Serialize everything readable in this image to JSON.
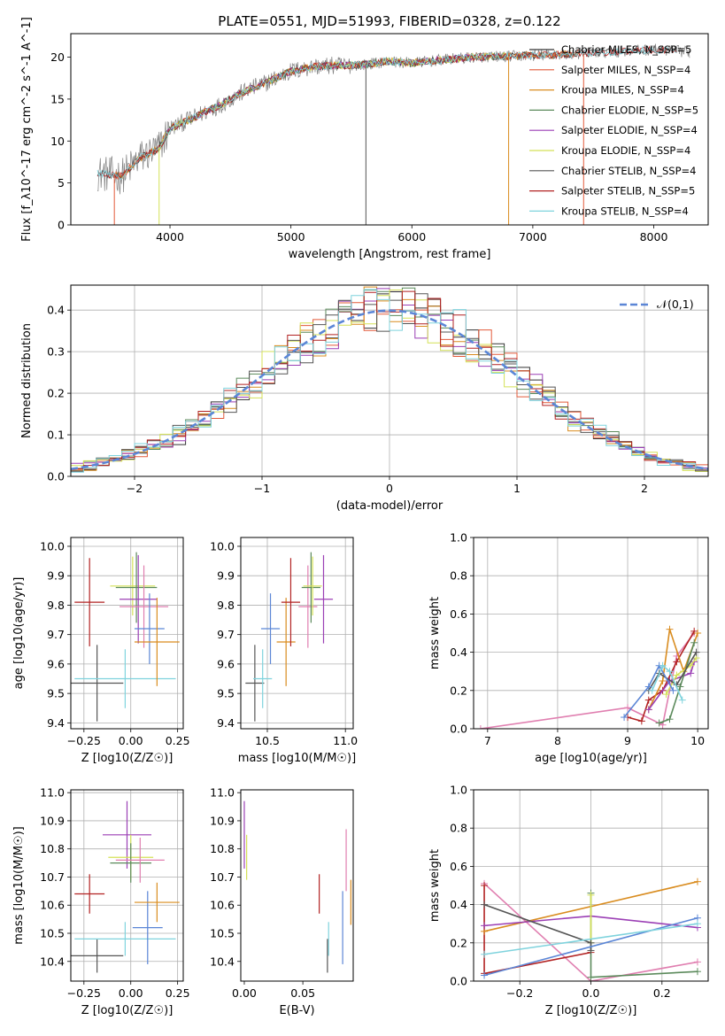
{
  "figure_title": "PLATE=0551, MJD=51993, FIBERID=0328, z=0.122",
  "colors": {
    "Chabrier MILES": "#333333",
    "Salpeter MILES": "#e35a3a",
    "Kroupa MILES": "#d98c1f",
    "Chabrier ELODIE": "#5b8a5b",
    "Salpeter ELODIE": "#9b3fb5",
    "Kroupa ELODIE": "#d4e157",
    "Chabrier STELIB": "#555555",
    "Salpeter STELIB": "#b22222",
    "Kroupa STELIB": "#7fd3dd",
    "data": "#808080",
    "gauss": "#5b86d6",
    "pink": "#e07fb0",
    "blue": "#5b86d6"
  },
  "chart_data": [
    {
      "id": "spectrum",
      "type": "line",
      "xlabel": "wavelength [Angstrom, rest frame]",
      "ylabel": "Flux [f_λ10^-17 erg cm^-2 s^-1 A^-1]",
      "xlim": [
        3180,
        8450
      ],
      "ylim": [
        0,
        22.8
      ],
      "xticks": [
        4000,
        5000,
        6000,
        7000,
        8000
      ],
      "yticks": [
        0,
        5,
        10,
        15,
        20
      ],
      "grid": false,
      "legend_position": "top-right",
      "legend": [
        {
          "label": "Chabrier MILES, N_SSP=5",
          "color_key": "Chabrier MILES"
        },
        {
          "label": "Salpeter MILES, N_SSP=4",
          "color_key": "Salpeter MILES"
        },
        {
          "label": "Kroupa MILES, N_SSP=4",
          "color_key": "Kroupa MILES"
        },
        {
          "label": "Chabrier ELODIE, N_SSP=5",
          "color_key": "Chabrier ELODIE"
        },
        {
          "label": "Salpeter ELODIE, N_SSP=4",
          "color_key": "Salpeter ELODIE"
        },
        {
          "label": "Kroupa ELODIE, N_SSP=4",
          "color_key": "Kroupa ELODIE"
        },
        {
          "label": "Chabrier STELIB, N_SSP=4",
          "color_key": "Chabrier STELIB"
        },
        {
          "label": "Salpeter STELIB, N_SSP=5",
          "color_key": "Salpeter STELIB"
        },
        {
          "label": "Kroupa STELIB, N_SSP=4",
          "color_key": "Kroupa STELIB"
        }
      ],
      "continuum": [
        [
          3400,
          6.2
        ],
        [
          3600,
          5.8
        ],
        [
          3750,
          8.0
        ],
        [
          3900,
          9.0
        ],
        [
          4000,
          11.5
        ],
        [
          4200,
          12.8
        ],
        [
          4400,
          14.2
        ],
        [
          4600,
          15.8
        ],
        [
          4800,
          17.0
        ],
        [
          5000,
          18.3
        ],
        [
          5200,
          18.9
        ],
        [
          5400,
          19.0
        ],
        [
          5600,
          19.1
        ],
        [
          5800,
          19.5
        ],
        [
          6000,
          19.3
        ],
        [
          6200,
          19.6
        ],
        [
          6500,
          20.0
        ],
        [
          6800,
          20.1
        ],
        [
          7000,
          20.2
        ],
        [
          7500,
          20.5
        ],
        [
          8000,
          20.9
        ],
        [
          8300,
          20.6
        ]
      ],
      "models": [
        {
          "color_key": "Chabrier MILES",
          "wmin": 3540,
          "wmax": 7400
        },
        {
          "color_key": "Salpeter MILES",
          "wmin": 3540,
          "wmax": 7400
        },
        {
          "color_key": "Kroupa MILES",
          "wmin": 3540,
          "wmax": 7400
        },
        {
          "color_key": "Chabrier ELODIE",
          "wmin": 3910,
          "wmax": 6800
        },
        {
          "color_key": "Salpeter ELODIE",
          "wmin": 3910,
          "wmax": 6800
        },
        {
          "color_key": "Kroupa ELODIE",
          "wmin": 3910,
          "wmax": 6800
        },
        {
          "color_key": "Chabrier STELIB",
          "wmin": 3400,
          "wmax": 8200
        },
        {
          "color_key": "Salpeter STELIB",
          "wmin": 3400,
          "wmax": 8200
        },
        {
          "color_key": "Kroupa STELIB",
          "wmin": 3400,
          "wmax": 8200
        }
      ]
    },
    {
      "id": "residuals",
      "type": "histogram",
      "xlabel": "(data-model)/error",
      "ylabel": "Normed distribution",
      "xlim": [
        -2.5,
        2.5
      ],
      "ylim": [
        0,
        0.46
      ],
      "xticks": [
        -2,
        -1,
        0,
        1,
        2
      ],
      "yticks": [
        0,
        0.1,
        0.2,
        0.3,
        0.4
      ],
      "grid": true,
      "legend_position": "top-right",
      "legend": [
        {
          "label": "𝒩(0,1)",
          "color_key": "gauss",
          "style": "dashed"
        }
      ],
      "bin_width": 0.1,
      "series_color_keys": [
        "Chabrier MILES",
        "Salpeter MILES",
        "Kroupa MILES",
        "Chabrier ELODIE",
        "Salpeter ELODIE",
        "Kroupa ELODIE",
        "Chabrier STELIB",
        "Salpeter STELIB",
        "Kroupa STELIB"
      ]
    },
    {
      "id": "age_vs_Z",
      "type": "errorbar",
      "xlabel": "Z [log10(Z/Z☉)]",
      "ylabel": "age  [log10(age/yr)]",
      "xlim": [
        -0.32,
        0.28
      ],
      "ylim": [
        9.38,
        10.03
      ],
      "xticks": [
        -0.25,
        0,
        0.25
      ],
      "xtick_labels": [
        "−0.25",
        "0.00",
        "0.25"
      ],
      "yticks": [
        9.4,
        9.5,
        9.6,
        9.7,
        9.8,
        9.9,
        10.0
      ],
      "grid": true,
      "points": [
        {
          "color_key": "Salpeter STELIB",
          "x": -0.22,
          "xerr": 0.08,
          "y": 9.81,
          "yerr": 0.15
        },
        {
          "color_key": "Chabrier STELIB",
          "x": -0.18,
          "xerr": 0.14,
          "y": 9.535,
          "yerr": 0.13
        },
        {
          "color_key": "Kroupa STELIB",
          "x": -0.03,
          "xerr": 0.27,
          "y": 9.55,
          "yerr": 0.1
        },
        {
          "color_key": "Kroupa ELODIE",
          "x": 0.01,
          "xerr": 0.12,
          "y": 9.865,
          "yerr": 0.1
        },
        {
          "color_key": "Chabrier ELODIE",
          "x": 0.03,
          "xerr": 0.11,
          "y": 9.86,
          "yerr": 0.12
        },
        {
          "color_key": "Salpeter ELODIE",
          "x": 0.04,
          "xerr": 0.1,
          "y": 9.82,
          "yerr": 0.15
        },
        {
          "color_key": "pink",
          "x": 0.07,
          "xerr": 0.13,
          "y": 9.795,
          "yerr": 0.14
        },
        {
          "color_key": "blue",
          "x": 0.1,
          "xerr": 0.08,
          "y": 9.72,
          "yerr": 0.12
        },
        {
          "color_key": "Kroupa MILES",
          "x": 0.14,
          "xerr": 0.12,
          "y": 9.675,
          "yerr": 0.15
        }
      ]
    },
    {
      "id": "age_vs_mass",
      "type": "errorbar",
      "xlabel": "mass [log10(M/M☉)]",
      "ylabel": "",
      "xlim": [
        10.33,
        11.05
      ],
      "ylim": [
        9.38,
        10.03
      ],
      "xticks": [
        10.5,
        11.0
      ],
      "yticks": [
        9.4,
        9.5,
        9.6,
        9.7,
        9.8,
        9.9,
        10.0
      ],
      "grid": true,
      "points": [
        {
          "color_key": "Chabrier STELIB",
          "x": 10.42,
          "xerr": 0.06,
          "y": 9.535,
          "yerr": 0.13
        },
        {
          "color_key": "Kroupa STELIB",
          "x": 10.47,
          "xerr": 0.06,
          "y": 9.55,
          "yerr": 0.1
        },
        {
          "color_key": "blue",
          "x": 10.52,
          "xerr": 0.06,
          "y": 9.72,
          "yerr": 0.12
        },
        {
          "color_key": "Kroupa MILES",
          "x": 10.62,
          "xerr": 0.06,
          "y": 9.675,
          "yerr": 0.15
        },
        {
          "color_key": "Salpeter STELIB",
          "x": 10.65,
          "xerr": 0.06,
          "y": 9.81,
          "yerr": 0.15
        },
        {
          "color_key": "pink",
          "x": 10.76,
          "xerr": 0.06,
          "y": 9.795,
          "yerr": 0.14
        },
        {
          "color_key": "Chabrier ELODIE",
          "x": 10.78,
          "xerr": 0.06,
          "y": 9.86,
          "yerr": 0.12
        },
        {
          "color_key": "Kroupa ELODIE",
          "x": 10.79,
          "xerr": 0.06,
          "y": 9.865,
          "yerr": 0.1
        },
        {
          "color_key": "Salpeter ELODIE",
          "x": 10.86,
          "xerr": 0.06,
          "y": 9.82,
          "yerr": 0.15
        }
      ]
    },
    {
      "id": "mass_weight_vs_age",
      "type": "line",
      "xlabel": "age  [log10(age/yr)]",
      "ylabel": "mass weight",
      "xlim": [
        6.8,
        10.15
      ],
      "ylim": [
        0,
        1.0
      ],
      "xticks": [
        7,
        8,
        9,
        10
      ],
      "yticks": [
        0,
        0.2,
        0.4,
        0.6,
        0.8,
        1.0
      ],
      "grid": true,
      "series": [
        {
          "color_key": "pink",
          "x": [
            6.9,
            9.0,
            9.5,
            9.7,
            9.95
          ],
          "y": [
            0.0,
            0.11,
            0.02,
            0.38,
            0.5
          ]
        },
        {
          "color_key": "Salpeter STELIB",
          "x": [
            9.0,
            9.2,
            9.3,
            9.5,
            9.7,
            9.95
          ],
          "y": [
            0.06,
            0.04,
            0.15,
            0.2,
            0.35,
            0.51
          ]
        },
        {
          "color_key": "Kroupa MILES",
          "x": [
            9.3,
            9.5,
            9.6,
            9.8,
            10.0
          ],
          "y": [
            0.1,
            0.25,
            0.52,
            0.3,
            0.5
          ]
        },
        {
          "color_key": "Salpeter ELODIE",
          "x": [
            9.3,
            9.6,
            9.9,
            9.95
          ],
          "y": [
            0.1,
            0.25,
            0.29,
            0.35
          ]
        },
        {
          "color_key": "Chabrier ELODIE",
          "x": [
            9.45,
            9.6,
            9.75,
            9.95
          ],
          "y": [
            0.03,
            0.05,
            0.22,
            0.45
          ]
        },
        {
          "color_key": "Kroupa ELODIE",
          "x": [
            9.55,
            9.7,
            9.9,
            9.98
          ],
          "y": [
            0.18,
            0.28,
            0.33,
            0.37
          ]
        },
        {
          "color_key": "Chabrier STELIB",
          "x": [
            9.3,
            9.45,
            9.7,
            9.98
          ],
          "y": [
            0.2,
            0.29,
            0.23,
            0.4
          ]
        },
        {
          "color_key": "blue",
          "x": [
            8.95,
            9.3,
            9.45,
            9.65
          ],
          "y": [
            0.06,
            0.22,
            0.33,
            0.2
          ]
        },
        {
          "color_key": "Kroupa STELIB",
          "x": [
            9.35,
            9.5,
            9.6,
            9.78
          ],
          "y": [
            0.2,
            0.33,
            0.3,
            0.15
          ]
        }
      ]
    },
    {
      "id": "mass_vs_Z",
      "type": "errorbar",
      "xlabel": "Z [log10(Z/Z☉)]",
      "ylabel": "mass [log10(M/M☉)]",
      "xlim": [
        -0.32,
        0.28
      ],
      "ylim": [
        10.33,
        11.01
      ],
      "xticks": [
        -0.25,
        0,
        0.25
      ],
      "xtick_labels": [
        "−0.25",
        "0.00",
        "0.25"
      ],
      "yticks": [
        10.4,
        10.5,
        10.6,
        10.7,
        10.8,
        10.9,
        11.0
      ],
      "grid": true,
      "points": [
        {
          "color_key": "Salpeter STELIB",
          "x": -0.22,
          "xerr": 0.08,
          "y": 10.64,
          "yerr": 0.07
        },
        {
          "color_key": "Chabrier STELIB",
          "x": -0.18,
          "xerr": 0.14,
          "y": 10.42,
          "yerr": 0.06
        },
        {
          "color_key": "Kroupa STELIB",
          "x": -0.03,
          "xerr": 0.27,
          "y": 10.48,
          "yerr": 0.06
        },
        {
          "color_key": "Salpeter ELODIE",
          "x": -0.02,
          "xerr": 0.13,
          "y": 10.85,
          "yerr": 0.12
        },
        {
          "color_key": "Kroupa ELODIE",
          "x": 0.0,
          "xerr": 0.12,
          "y": 10.77,
          "yerr": 0.08
        },
        {
          "color_key": "Chabrier ELODIE",
          "x": 0.0,
          "xerr": 0.11,
          "y": 10.75,
          "yerr": 0.07
        },
        {
          "color_key": "pink",
          "x": 0.05,
          "xerr": 0.13,
          "y": 10.76,
          "yerr": 0.08
        },
        {
          "color_key": "blue",
          "x": 0.09,
          "xerr": 0.08,
          "y": 10.52,
          "yerr": 0.13
        },
        {
          "color_key": "Kroupa MILES",
          "x": 0.14,
          "xerr": 0.12,
          "y": 10.61,
          "yerr": 0.07
        }
      ]
    },
    {
      "id": "mass_vs_EBV",
      "type": "errorbar",
      "xlabel": "E(B-V)",
      "ylabel": "",
      "xlim": [
        -0.003,
        0.093
      ],
      "ylim": [
        10.33,
        11.01
      ],
      "xticks": [
        0.0,
        0.05
      ],
      "xtick_labels": [
        "0.00",
        "0.05"
      ],
      "yticks": [
        10.4,
        10.5,
        10.6,
        10.7,
        10.8,
        10.9,
        11.0
      ],
      "grid": false,
      "points": [
        {
          "color_key": "Salpeter ELODIE",
          "x": 0.0,
          "y": 10.85,
          "yerr": 0.12
        },
        {
          "color_key": "Kroupa ELODIE",
          "x": 0.002,
          "y": 10.77,
          "yerr": 0.08
        },
        {
          "color_key": "Salpeter STELIB",
          "x": 0.064,
          "y": 10.64,
          "yerr": 0.07
        },
        {
          "color_key": "Chabrier STELIB",
          "x": 0.071,
          "y": 10.42,
          "yerr": 0.06
        },
        {
          "color_key": "Kroupa STELIB",
          "x": 0.072,
          "y": 10.48,
          "yerr": 0.06
        },
        {
          "color_key": "blue",
          "x": 0.084,
          "y": 10.52,
          "yerr": 0.13
        },
        {
          "color_key": "pink",
          "x": 0.087,
          "y": 10.76,
          "yerr": 0.11
        },
        {
          "color_key": "Kroupa MILES",
          "x": 0.091,
          "y": 10.61,
          "yerr": 0.08
        }
      ]
    },
    {
      "id": "mass_weight_vs_Z",
      "type": "line",
      "xlabel": "Z [log10(Z/Z☉)]",
      "ylabel": "mass weight",
      "xlim": [
        -0.33,
        0.33
      ],
      "ylim": [
        0,
        1.0
      ],
      "xticks": [
        -0.2,
        0.0,
        0.2
      ],
      "xtick_labels": [
        "−0.2",
        "0.0",
        "0.2"
      ],
      "yticks": [
        0,
        0.2,
        0.4,
        0.6,
        0.8,
        1.0
      ],
      "grid": true,
      "series": [
        {
          "color_key": "pink",
          "x": [
            -0.3,
            0.0,
            0.3
          ],
          "y": [
            0.51,
            0.0,
            0.1
          ]
        },
        {
          "color_key": "Salpeter STELIB",
          "x": [
            -0.3,
            -0.3,
            0.0
          ],
          "y": [
            0.5,
            0.04,
            0.15
          ]
        },
        {
          "color_key": "Kroupa MILES",
          "x": [
            -0.3,
            0.3
          ],
          "y": [
            0.26,
            0.52
          ]
        },
        {
          "color_key": "Salpeter ELODIE",
          "x": [
            -0.3,
            0.0,
            0.3
          ],
          "y": [
            0.29,
            0.34,
            0.28
          ]
        },
        {
          "color_key": "Chabrier ELODIE",
          "x": [
            0.0,
            0.0,
            0.3
          ],
          "y": [
            0.46,
            0.02,
            0.05
          ]
        },
        {
          "color_key": "Kroupa ELODIE",
          "x": [
            0.0,
            0.0
          ],
          "y": [
            0.45,
            0.2
          ]
        },
        {
          "color_key": "Chabrier STELIB",
          "x": [
            -0.3,
            0.0,
            0.0
          ],
          "y": [
            0.4,
            0.2,
            0.16
          ]
        },
        {
          "color_key": "blue",
          "x": [
            -0.3,
            0.3
          ],
          "y": [
            0.03,
            0.33
          ]
        },
        {
          "color_key": "Kroupa STELIB",
          "x": [
            -0.3,
            0.3
          ],
          "y": [
            0.14,
            0.3
          ]
        }
      ]
    }
  ]
}
